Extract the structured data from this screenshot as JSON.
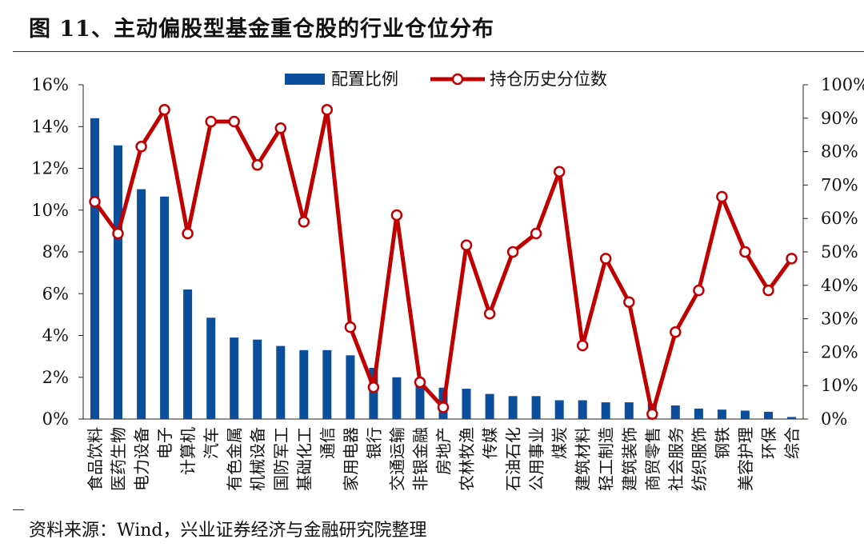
{
  "title": "图 11、主动偏股型基金重仓股的行业仓位分布",
  "source": "资料来源：Wind，兴业证券经济与金融研究院整理",
  "colors": {
    "bar": "#0b4f9c",
    "line": "#c00000",
    "marker_fill": "#ffffff"
  },
  "chart_data": {
    "type": "bar",
    "title": "",
    "xlabel": "",
    "ylabel": "",
    "y_left": {
      "range": [
        0,
        16
      ],
      "ticks": [
        0,
        2,
        4,
        6,
        8,
        10,
        12,
        14,
        16
      ],
      "tick_labels": [
        "0%",
        "2%",
        "4%",
        "6%",
        "8%",
        "10%",
        "12%",
        "14%",
        "16%"
      ]
    },
    "y_right": {
      "range": [
        0,
        100
      ],
      "ticks": [
        0,
        10,
        20,
        30,
        40,
        50,
        60,
        70,
        80,
        90,
        100
      ],
      "tick_labels": [
        "0%",
        "10%",
        "20%",
        "30%",
        "40%",
        "50%",
        "60%",
        "70%",
        "80%",
        "90%",
        "100%"
      ]
    },
    "legend": {
      "placement": "top"
    },
    "grid": false,
    "categories": [
      "食品饮料",
      "医药生物",
      "电力设备",
      "电子",
      "计算机",
      "汽车",
      "有色金属",
      "机械设备",
      "国防军工",
      "基础化工",
      "通信",
      "家用电器",
      "银行",
      "交通运输",
      "非银金融",
      "房地产",
      "农林牧渔",
      "传媒",
      "石油石化",
      "公用事业",
      "煤炭",
      "建筑材料",
      "轻工制造",
      "建筑装饰",
      "商贸零售",
      "社会服务",
      "纺织服饰",
      "钢铁",
      "美容护理",
      "环保",
      "综合"
    ],
    "series": [
      {
        "name": "配置比例",
        "axis": "left",
        "kind": "bar",
        "values": [
          14.4,
          13.1,
          11.0,
          10.65,
          6.2,
          4.85,
          3.9,
          3.8,
          3.5,
          3.3,
          3.3,
          3.05,
          2.45,
          2.0,
          1.85,
          1.5,
          1.45,
          1.2,
          1.1,
          1.1,
          0.9,
          0.9,
          0.8,
          0.8,
          0.75,
          0.65,
          0.5,
          0.45,
          0.4,
          0.35,
          0.1
        ]
      },
      {
        "name": "持仓历史分位数",
        "axis": "right",
        "kind": "line",
        "values": [
          65,
          55.5,
          81.5,
          92.5,
          55.5,
          89,
          89,
          76,
          87,
          59,
          92.5,
          27.5,
          9.5,
          61,
          11,
          3.5,
          52,
          31.5,
          50,
          55.5,
          74,
          22,
          48,
          35,
          1.5,
          26,
          38.5,
          66.5,
          50,
          38.5,
          48
        ]
      }
    ]
  }
}
